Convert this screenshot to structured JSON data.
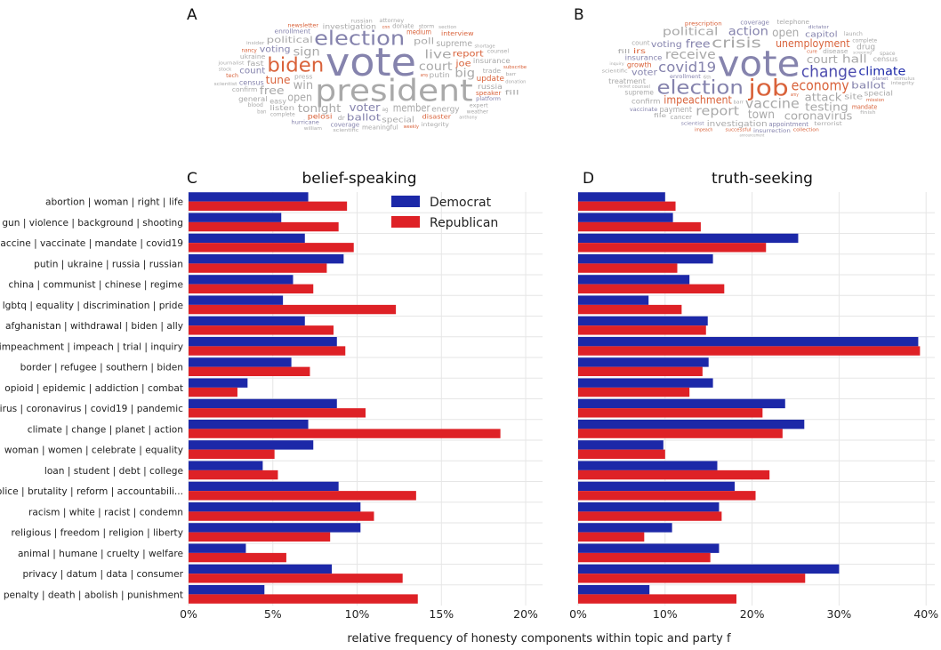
{
  "panel_labels": [
    "A",
    "B",
    "C",
    "D"
  ],
  "xlabel": "relative frequency of honesty components within topic and party f",
  "legend": {
    "dem": "Democrat",
    "rep": "Republican"
  },
  "colors": {
    "dem": "#1c28a8",
    "rep": "#de2126",
    "grid": "#e6e6e6"
  },
  "wordclouds": [
    {
      "panel": "A",
      "words": [
        {
          "t": "vote",
          "s": 44,
          "c": "#8583ad"
        },
        {
          "t": "president",
          "s": 34,
          "c": "#a9a9a9"
        },
        {
          "t": "election",
          "s": 22,
          "c": "#8583ad"
        },
        {
          "t": "biden",
          "s": 22,
          "c": "#d9623a"
        },
        {
          "t": "court",
          "s": 13,
          "c": "#a9a9a9"
        },
        {
          "t": "win",
          "s": 13,
          "c": "#a9a9a9"
        },
        {
          "t": "live",
          "s": 13,
          "c": "#a9a9a9"
        },
        {
          "t": "voter",
          "s": 12,
          "c": "#8583ad"
        },
        {
          "t": "big",
          "s": 13,
          "c": "#a9a9a9"
        },
        {
          "t": "sign",
          "s": 13,
          "c": "#a9a9a9"
        },
        {
          "t": "member",
          "s": 12,
          "c": "#a9a9a9"
        },
        {
          "t": "open",
          "s": 12,
          "c": "#a9a9a9"
        },
        {
          "t": "tonight",
          "s": 12,
          "c": "#a9a9a9"
        },
        {
          "t": "tune",
          "s": 12,
          "c": "#d9623a"
        },
        {
          "t": "joe",
          "s": 10,
          "c": "#d9623a"
        },
        {
          "t": "poll",
          "s": 10,
          "c": "#a9a9a9"
        },
        {
          "t": "ballot",
          "s": 11,
          "c": "#8583ad"
        },
        {
          "t": "voting",
          "s": 10,
          "c": "#8583ad"
        },
        {
          "t": "free",
          "s": 12,
          "c": "#a9a9a9"
        },
        {
          "t": "political",
          "s": 10,
          "c": "#a9a9a9"
        },
        {
          "t": "report",
          "s": 10,
          "c": "#d9623a"
        },
        {
          "t": "supreme",
          "s": 10,
          "c": "#a9a9a9"
        },
        {
          "t": "energy",
          "s": 9,
          "c": "#a9a9a9"
        },
        {
          "t": "count",
          "s": 10,
          "c": "#8583ad"
        },
        {
          "t": "special",
          "s": 9,
          "c": "#a9a9a9"
        },
        {
          "t": "insurance",
          "s": 8,
          "c": "#a9a9a9"
        },
        {
          "t": "putin",
          "s": 8,
          "c": "#a9a9a9"
        },
        {
          "t": "update",
          "s": 9,
          "c": "#d9623a"
        },
        {
          "t": "easy",
          "s": 8,
          "c": "#a9a9a9"
        },
        {
          "t": "pelosi",
          "s": 8,
          "c": "#d9623a"
        },
        {
          "t": "census",
          "s": 8,
          "c": "#8583ad"
        },
        {
          "t": "investigation",
          "s": 8,
          "c": "#a9a9a9"
        },
        {
          "t": "medium",
          "s": 8,
          "c": "#d9623a"
        },
        {
          "t": "russia",
          "s": 8,
          "c": "#a9a9a9"
        },
        {
          "t": "listen",
          "s": 8,
          "c": "#a9a9a9"
        },
        {
          "t": "fast",
          "s": 8,
          "c": "#a9a9a9"
        },
        {
          "t": "trade",
          "s": 7,
          "c": "#a9a9a9"
        },
        {
          "t": "disaster",
          "s": 7,
          "c": "#d9623a"
        },
        {
          "t": "speaker",
          "s": 7,
          "c": "#d9623a"
        },
        {
          "t": "general",
          "s": 8,
          "c": "#a9a9a9"
        },
        {
          "t": "coverage",
          "s": 7,
          "c": "#8583ad"
        },
        {
          "t": "meaningful",
          "s": 7,
          "c": "#a9a9a9"
        },
        {
          "t": "ukraine",
          "s": 7,
          "c": "#a9a9a9"
        },
        {
          "t": "enrollment",
          "s": 7,
          "c": "#8583ad"
        },
        {
          "t": "confirm",
          "s": 7,
          "c": "#a9a9a9"
        },
        {
          "t": "donate",
          "s": 7,
          "c": "#a9a9a9"
        },
        {
          "t": "interview",
          "s": 7,
          "c": "#d9623a"
        },
        {
          "t": "press",
          "s": 7,
          "c": "#a9a9a9"
        },
        {
          "t": "expert",
          "s": 6,
          "c": "#a9a9a9"
        },
        {
          "t": "complete",
          "s": 6,
          "c": "#a9a9a9"
        },
        {
          "t": "platform",
          "s": 6,
          "c": "#8583ad"
        },
        {
          "t": "hurricane",
          "s": 6,
          "c": "#8583ad"
        },
        {
          "t": "integrity",
          "s": 6,
          "c": "#a9a9a9"
        },
        {
          "t": "counsel",
          "s": 6,
          "c": "#a9a9a9"
        },
        {
          "t": "weather",
          "s": 6,
          "c": "#a9a9a9"
        },
        {
          "t": "tech",
          "s": 6,
          "c": "#d9623a"
        },
        {
          "t": "nancy",
          "s": 6,
          "c": "#d9623a"
        },
        {
          "t": "journalist",
          "s": 5,
          "c": "#a9a9a9"
        },
        {
          "t": "barr",
          "s": 5,
          "c": "#a9a9a9"
        },
        {
          "t": "amy",
          "s": 5,
          "c": "#d9623a"
        },
        {
          "t": "russian",
          "s": 6,
          "c": "#a9a9a9"
        },
        {
          "t": "shortage",
          "s": 5,
          "c": "#a9a9a9"
        },
        {
          "t": "weekly",
          "s": 5,
          "c": "#d9623a"
        },
        {
          "t": "newsletter",
          "s": 6,
          "c": "#d9623a"
        },
        {
          "t": "scientific",
          "s": 5,
          "c": "#a9a9a9"
        },
        {
          "t": "blood",
          "s": 6,
          "c": "#a9a9a9"
        },
        {
          "t": "storm",
          "s": 6,
          "c": "#a9a9a9"
        },
        {
          "t": "attorney",
          "s": 6,
          "c": "#a9a9a9"
        },
        {
          "t": "ag",
          "s": 6,
          "c": "#a9a9a9"
        },
        {
          "t": "insider",
          "s": 5,
          "c": "#a9a9a9"
        },
        {
          "t": "subscribe",
          "s": 5,
          "c": "#d9623a"
        },
        {
          "t": "donation",
          "s": 5,
          "c": "#a9a9a9"
        },
        {
          "t": "anthony",
          "s": 5,
          "c": "#a9a9a9"
        },
        {
          "t": "section",
          "s": 5,
          "c": "#a9a9a9"
        },
        {
          "t": "scientist",
          "s": 5,
          "c": "#a9a9a9"
        },
        {
          "t": "stock",
          "s": 5,
          "c": "#a9a9a9"
        },
        {
          "t": "dr",
          "s": 7,
          "c": "#a9a9a9"
        },
        {
          "t": "ban",
          "s": 6,
          "c": "#a9a9a9"
        },
        {
          "t": "fill",
          "s": 7,
          "c": "#a9a9a9"
        },
        {
          "t": "william",
          "s": 5,
          "c": "#a9a9a9"
        },
        {
          "t": "cnn",
          "s": 5,
          "c": "#d9623a"
        }
      ]
    },
    {
      "panel": "B",
      "words": [
        {
          "t": "vote",
          "s": 40,
          "c": "#8583ad"
        },
        {
          "t": "job",
          "s": 26,
          "c": "#d9623a"
        },
        {
          "t": "election",
          "s": 21,
          "c": "#8583ad"
        },
        {
          "t": "change",
          "s": 18,
          "c": "#4d4cae"
        },
        {
          "t": "economy",
          "s": 16,
          "c": "#d9623a"
        },
        {
          "t": "covid19",
          "s": 16,
          "c": "#8583ad"
        },
        {
          "t": "crisis",
          "s": 16,
          "c": "#a9a9a9"
        },
        {
          "t": "vaccine",
          "s": 15,
          "c": "#a9a9a9"
        },
        {
          "t": "receive",
          "s": 14,
          "c": "#a9a9a9"
        },
        {
          "t": "court",
          "s": 12,
          "c": "#a9a9a9"
        },
        {
          "t": "impeachment",
          "s": 12,
          "c": "#d9623a"
        },
        {
          "t": "unemployment",
          "s": 12,
          "c": "#d9623a"
        },
        {
          "t": "attack",
          "s": 12,
          "c": "#a9a9a9"
        },
        {
          "t": "report",
          "s": 14,
          "c": "#a9a9a9"
        },
        {
          "t": "town",
          "s": 13,
          "c": "#a9a9a9"
        },
        {
          "t": "free",
          "s": 12,
          "c": "#8583ad"
        },
        {
          "t": "action",
          "s": 13,
          "c": "#8583ad"
        },
        {
          "t": "testing",
          "s": 12,
          "c": "#a9a9a9"
        },
        {
          "t": "hall",
          "s": 12,
          "c": "#a9a9a9"
        },
        {
          "t": "open",
          "s": 13,
          "c": "#a9a9a9"
        },
        {
          "t": "ballot",
          "s": 11,
          "c": "#8583ad"
        },
        {
          "t": "coronavirus",
          "s": 12,
          "c": "#a9a9a9"
        },
        {
          "t": "climate",
          "s": 13,
          "c": "#1c28a8"
        },
        {
          "t": "political",
          "s": 12,
          "c": "#a9a9a9"
        },
        {
          "t": "voter",
          "s": 10,
          "c": "#8583ad"
        },
        {
          "t": "voting",
          "s": 10,
          "c": "#8583ad"
        },
        {
          "t": "capitol",
          "s": 9,
          "c": "#8583ad"
        },
        {
          "t": "site",
          "s": 9,
          "c": "#a9a9a9"
        },
        {
          "t": "investigation",
          "s": 9,
          "c": "#a9a9a9"
        },
        {
          "t": "payment",
          "s": 9,
          "c": "#a9a9a9"
        },
        {
          "t": "insurance",
          "s": 8,
          "c": "#8583ad"
        },
        {
          "t": "supreme",
          "s": 8,
          "c": "#a9a9a9"
        },
        {
          "t": "growth",
          "s": 8,
          "c": "#d9623a"
        },
        {
          "t": "treatment",
          "s": 8,
          "c": "#a9a9a9"
        },
        {
          "t": "confirm",
          "s": 8,
          "c": "#a9a9a9"
        },
        {
          "t": "drug",
          "s": 9,
          "c": "#a9a9a9"
        },
        {
          "t": "special",
          "s": 8,
          "c": "#a9a9a9"
        },
        {
          "t": "appointment",
          "s": 7,
          "c": "#8583ad"
        },
        {
          "t": "census",
          "s": 8,
          "c": "#a9a9a9"
        },
        {
          "t": "mandate",
          "s": 7,
          "c": "#d9623a"
        },
        {
          "t": "enrollment",
          "s": 6,
          "c": "#8583ad"
        },
        {
          "t": "disease",
          "s": 7,
          "c": "#a9a9a9"
        },
        {
          "t": "coverage",
          "s": 7,
          "c": "#8583ad"
        },
        {
          "t": "cancer",
          "s": 7,
          "c": "#a9a9a9"
        },
        {
          "t": "irs",
          "s": 8,
          "c": "#d9623a"
        },
        {
          "t": "telephone",
          "s": 7,
          "c": "#a9a9a9"
        },
        {
          "t": "insurrection",
          "s": 6,
          "c": "#8583ad"
        },
        {
          "t": "terrorist",
          "s": 6,
          "c": "#a9a9a9"
        },
        {
          "t": "prescription",
          "s": 6,
          "c": "#d9623a"
        },
        {
          "t": "complete",
          "s": 6,
          "c": "#a9a9a9"
        },
        {
          "t": "dictator",
          "s": 5,
          "c": "#8583ad"
        },
        {
          "t": "planet",
          "s": 5,
          "c": "#8583ad"
        },
        {
          "t": "successful",
          "s": 5,
          "c": "#d9623a"
        },
        {
          "t": "launch",
          "s": 6,
          "c": "#a9a9a9"
        },
        {
          "t": "mission",
          "s": 5,
          "c": "#d9623a"
        },
        {
          "t": "scientist",
          "s": 5,
          "c": "#8583ad"
        },
        {
          "t": "vaccinate",
          "s": 6,
          "c": "#8583ad"
        },
        {
          "t": "scientific",
          "s": 5,
          "c": "#a9a9a9"
        },
        {
          "t": "space",
          "s": 6,
          "c": "#a9a9a9"
        },
        {
          "t": "counsel",
          "s": 5,
          "c": "#a9a9a9"
        },
        {
          "t": "stimulus",
          "s": 5,
          "c": "#a9a9a9"
        },
        {
          "t": "collection",
          "s": 5,
          "c": "#d9623a"
        },
        {
          "t": "integrity",
          "s": 5,
          "c": "#a9a9a9"
        },
        {
          "t": "cure",
          "s": 5,
          "c": "#d9623a"
        },
        {
          "t": "6th",
          "s": 5,
          "c": "#a9a9a9"
        },
        {
          "t": "finish",
          "s": 5,
          "c": "#a9a9a9"
        },
        {
          "t": "amy",
          "s": 5,
          "c": "#d9623a"
        },
        {
          "t": "screening",
          "s": 4,
          "c": "#a9a9a9"
        },
        {
          "t": "inquiry",
          "s": 4,
          "c": "#a9a9a9"
        },
        {
          "t": "impeach",
          "s": 5,
          "c": "#d9623a"
        },
        {
          "t": "barr",
          "s": 5,
          "c": "#a9a9a9"
        },
        {
          "t": "file",
          "s": 6,
          "c": "#a9a9a9"
        },
        {
          "t": "count",
          "s": 7,
          "c": "#a9a9a9"
        },
        {
          "t": "rocket",
          "s": 4,
          "c": "#a9a9a9"
        },
        {
          "t": "announcement",
          "s": 4,
          "c": "#a9a9a9"
        },
        {
          "t": "fill",
          "s": 6,
          "c": "#a9a9a9"
        }
      ]
    }
  ],
  "chart_data": [
    {
      "type": "bar",
      "orientation": "horizontal",
      "panel": "C",
      "title": "belief-speaking",
      "categories": [
        "abortion | woman | right | life",
        "gun | violence | background | shooting",
        "vaccine | vaccinate | mandate | covid19",
        "putin | ukraine | russia | russian",
        "china | communist | chinese | regime",
        "lgbtq | equality | discrimination | pride",
        "afghanistan | withdrawal | biden | ally",
        "impeachment | impeach | trial | inquiry",
        "border | refugee | southern | biden",
        "opioid | epidemic | addiction | combat",
        "virus | coronavirus | covid19 | pandemic",
        "climate | change | planet | action",
        "woman | women | celebrate | equality",
        "loan | student | debt | college",
        "police | brutality | reform | accountabili...",
        "racism | white | racist | condemn",
        "religious | freedom | religion | liberty",
        "animal | humane | cruelty | welfare",
        "privacy | datum | data | consumer",
        "penalty | death | abolish | punishment"
      ],
      "series": [
        {
          "name": "Democrat",
          "values": [
            7.1,
            5.5,
            6.9,
            9.2,
            6.2,
            5.6,
            6.9,
            8.8,
            6.1,
            3.5,
            8.8,
            7.1,
            7.4,
            4.4,
            8.9,
            10.2,
            10.2,
            3.4,
            8.5,
            4.5
          ]
        },
        {
          "name": "Republican",
          "values": [
            9.4,
            8.9,
            9.8,
            8.2,
            7.4,
            12.3,
            8.6,
            9.3,
            7.2,
            2.9,
            10.5,
            18.5,
            5.1,
            5.3,
            13.5,
            11.0,
            8.4,
            5.8,
            12.7,
            13.6
          ]
        }
      ],
      "xlim": [
        0,
        21
      ],
      "xticks": [
        "0%",
        "5%",
        "10%",
        "15%",
        "20%"
      ],
      "xtick_values": [
        0,
        5,
        10,
        15,
        20
      ],
      "legend_position": "top-right"
    },
    {
      "type": "bar",
      "orientation": "horizontal",
      "panel": "D",
      "title": "truth-seeking",
      "categories": [
        "abortion | woman | right | life",
        "gun | violence | background | shooting",
        "vaccine | vaccinate | mandate | covid19",
        "putin | ukraine | russia | russian",
        "china | communist | chinese | regime",
        "lgbtq | equality | discrimination | pride",
        "afghanistan | withdrawal | biden | ally",
        "impeachment | impeach | trial | inquiry",
        "border | refugee | southern | biden",
        "opioid | epidemic | addiction | combat",
        "virus | coronavirus | covid19 | pandemic",
        "climate | change | planet | action",
        "woman | women | celebrate | equality",
        "loan | student | debt | college",
        "police | brutality | reform | accountabili...",
        "racism | white | racist | condemn",
        "religious | freedom | religion | liberty",
        "animal | humane | cruelty | welfare",
        "privacy | datum | data | consumer",
        "penalty | death | abolish | punishment"
      ],
      "series": [
        {
          "name": "Democrat",
          "values": [
            10.0,
            10.9,
            25.3,
            15.5,
            12.8,
            8.1,
            14.9,
            39.1,
            15.0,
            15.5,
            23.8,
            26.0,
            9.8,
            16.0,
            18.0,
            16.2,
            10.8,
            16.2,
            30.0,
            8.2
          ]
        },
        {
          "name": "Republican",
          "values": [
            11.2,
            14.1,
            21.6,
            11.4,
            16.8,
            11.9,
            14.7,
            39.3,
            14.3,
            12.8,
            21.2,
            23.5,
            10.0,
            22.0,
            20.4,
            16.5,
            7.6,
            15.2,
            26.1,
            18.2
          ]
        }
      ],
      "xlim": [
        0,
        41
      ],
      "xticks": [
        "0%",
        "10%",
        "20%",
        "30%",
        "40%"
      ],
      "xtick_values": [
        0,
        10,
        20,
        30,
        40
      ]
    }
  ]
}
